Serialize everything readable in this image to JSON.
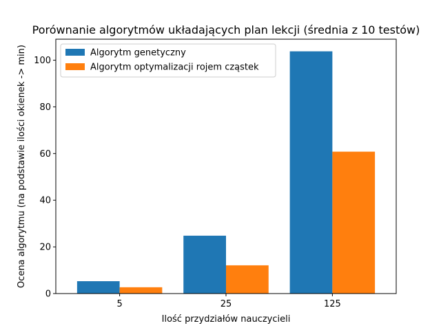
{
  "chart_data": {
    "type": "bar",
    "title": "Porównanie algorytmów układających plan lekcji (średnia z 10 testów)",
    "xlabel": "Ilość przydziałów nauczycieli",
    "ylabel": "Ocena algorytmu (na podstawie ilości okienek -> min)",
    "categories": [
      "5",
      "25",
      "125"
    ],
    "series": [
      {
        "name": "Algorytm genetyczny",
        "values": [
          5.3,
          24.8,
          103.8
        ],
        "color": "#1f77b4"
      },
      {
        "name": "Algorytm optymalizacji rojem cząstek",
        "values": [
          2.7,
          12.1,
          60.8
        ],
        "color": "#ff7f0e"
      }
    ],
    "ylim": [
      0,
      109
    ],
    "yticks": [
      0,
      20,
      40,
      60,
      80,
      100
    ],
    "grid": false,
    "legend_position": "top-left"
  }
}
